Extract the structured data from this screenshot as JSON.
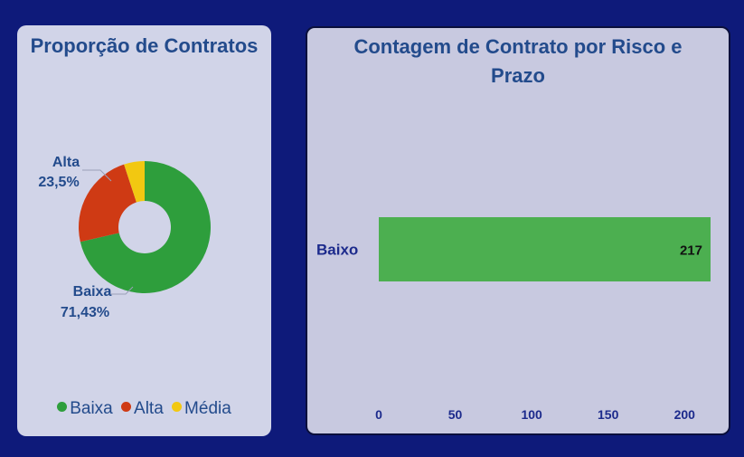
{
  "left_card": {
    "title": "Proporção de Contratos",
    "labels": {
      "alta_name": "Alta",
      "alta_value": "23,5%",
      "baixa_name": "Baixa",
      "baixa_value": "71,43%"
    },
    "legend": [
      {
        "label": "Baixa",
        "color": "#2e9e3c"
      },
      {
        "label": "Alta",
        "color": "#cf3a14"
      },
      {
        "label": "Média",
        "color": "#f2c811"
      }
    ]
  },
  "right_card": {
    "title": "Contagem de Contrato por Risco e Prazo"
  },
  "chart_data": [
    {
      "type": "pie",
      "title": "Proporção de Contratos",
      "donut": true,
      "categories": [
        "Baixa",
        "Alta",
        "Média"
      ],
      "values": [
        71.43,
        23.5,
        5.07
      ],
      "colors": [
        "#2e9e3c",
        "#cf3a14",
        "#f2c811"
      ],
      "data_labels": [
        "71,43%",
        "23,5%",
        ""
      ],
      "legend": "bottom"
    },
    {
      "type": "bar",
      "orientation": "horizontal",
      "title": "Contagem de Contrato por Risco e Prazo",
      "categories": [
        "Baixo"
      ],
      "values": [
        217
      ],
      "color": "#4caf50",
      "xlim": [
        0,
        217
      ],
      "xticks": [
        0,
        50,
        100,
        150,
        200
      ],
      "grid": false
    }
  ]
}
